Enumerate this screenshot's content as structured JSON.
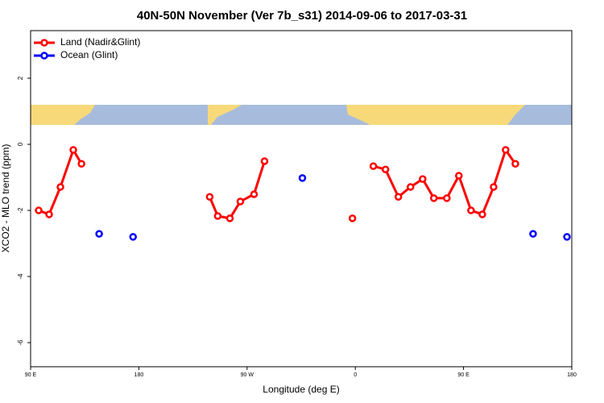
{
  "chart_data": {
    "type": "line",
    "title": "40N-50N November (Ver 7b_s31)   2014-09-06 to 2017-03-31",
    "x_label": "Longitude (deg E)",
    "y_label": "XCO2 - MLO trend (ppm)",
    "xlim": [
      90,
      540
    ],
    "ylim": [
      -6.73,
      3.44
    ],
    "xticks": [
      {
        "value": 90,
        "label": "90 E"
      },
      {
        "value": 180,
        "label": "180"
      },
      {
        "value": 270,
        "label": "90 W"
      },
      {
        "value": 360,
        "label": "0"
      },
      {
        "value": 450,
        "label": "90 E"
      },
      {
        "value": 540,
        "label": "180"
      }
    ],
    "yticks": [
      2,
      0,
      -2,
      -4,
      -6
    ],
    "legend": "top-left",
    "series": [
      {
        "name": "Land (Nadir&Glint)",
        "color": "#ff0000",
        "lines": true,
        "x": [
          96.7,
          105.4,
          114.8,
          125.5,
          132.3,
          null,
          238.9,
          245.6,
          255.7,
          264.4,
          275.8,
          284.5,
          null,
          357.6,
          null,
          375.0,
          385.1,
          395.8,
          405.9,
          416.0,
          425.3,
          436.1,
          446.1,
          456.2,
          465.6,
          475.0,
          485.0,
          493.1
        ],
        "values": [
          -2.0,
          -2.12,
          -1.29,
          -0.17,
          -0.59,
          null,
          -1.59,
          -2.17,
          -2.24,
          -1.73,
          -1.51,
          -0.51,
          null,
          -2.24,
          null,
          -0.66,
          -0.76,
          -1.59,
          -1.29,
          -1.05,
          -1.63,
          -1.63,
          -0.95,
          -2.0,
          -2.12,
          -1.29,
          -0.17,
          -0.59
        ]
      },
      {
        "name": "Ocean (Glint)",
        "color": "#0000ff",
        "lines": false,
        "x": [
          147.0,
          175.2,
          316.0,
          507.8,
          536.0
        ],
        "values": [
          -2.71,
          -2.8,
          -1.02,
          -2.71,
          -2.8
        ]
      }
    ]
  }
}
